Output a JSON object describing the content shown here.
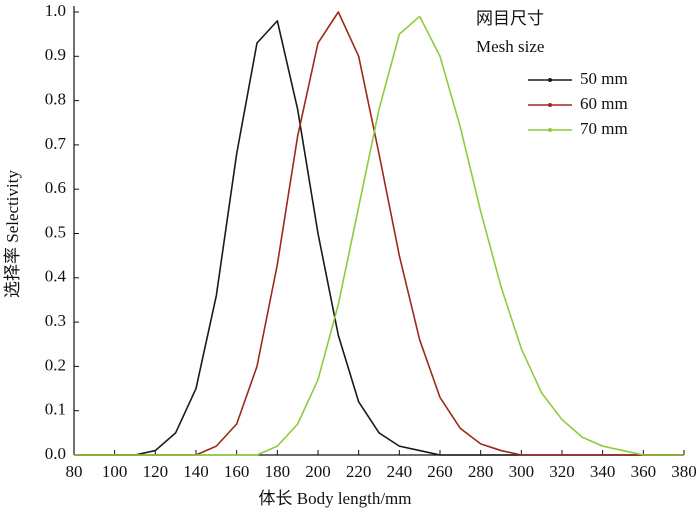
{
  "chart_data": {
    "type": "line",
    "x_label": "体长 Body length/mm",
    "y_label": "选择率 Selectivity",
    "legend_title": [
      "网目尺寸",
      "Mesh size"
    ],
    "x": [
      80,
      90,
      100,
      110,
      120,
      130,
      140,
      150,
      160,
      170,
      180,
      190,
      200,
      210,
      220,
      230,
      240,
      250,
      260,
      270,
      280,
      290,
      300,
      310,
      320,
      330,
      340,
      350,
      360,
      370,
      380
    ],
    "series": [
      {
        "name": "50 mm",
        "color": "#1a1a1a",
        "values": [
          0,
          0,
          0,
          0,
          0.01,
          0.05,
          0.15,
          0.36,
          0.68,
          0.93,
          0.98,
          0.78,
          0.5,
          0.27,
          0.12,
          0.05,
          0.02,
          0.01,
          0,
          0,
          0,
          0,
          0,
          0,
          0,
          0,
          0,
          0,
          0,
          0,
          0
        ]
      },
      {
        "name": "60 mm",
        "color": "#9c2a1a",
        "values": [
          0,
          0,
          0,
          0,
          0,
          0,
          0,
          0.02,
          0.07,
          0.2,
          0.43,
          0.72,
          0.93,
          1.0,
          0.9,
          0.68,
          0.45,
          0.26,
          0.13,
          0.06,
          0.025,
          0.01,
          0,
          0,
          0,
          0,
          0,
          0,
          0,
          0,
          0
        ]
      },
      {
        "name": "70 mm",
        "color": "#8ccc3c",
        "values": [
          0,
          0,
          0,
          0,
          0,
          0,
          0,
          0,
          0,
          0,
          0.02,
          0.07,
          0.17,
          0.34,
          0.56,
          0.78,
          0.95,
          0.99,
          0.9,
          0.74,
          0.55,
          0.38,
          0.24,
          0.14,
          0.08,
          0.04,
          0.02,
          0.01,
          0,
          0,
          0
        ]
      }
    ],
    "xlim": [
      80,
      380
    ],
    "xticks": [
      80,
      100,
      120,
      140,
      160,
      180,
      200,
      220,
      240,
      260,
      280,
      300,
      320,
      340,
      360,
      380
    ],
    "ylim": [
      0,
      1
    ],
    "yticks": [
      {
        "value": 0,
        "label": "0.0"
      },
      0.1,
      0.2,
      0.3,
      0.4,
      0.5,
      0.6,
      0.7,
      0.8,
      0.9,
      {
        "value": 1,
        "label": "1.0"
      }
    ]
  }
}
